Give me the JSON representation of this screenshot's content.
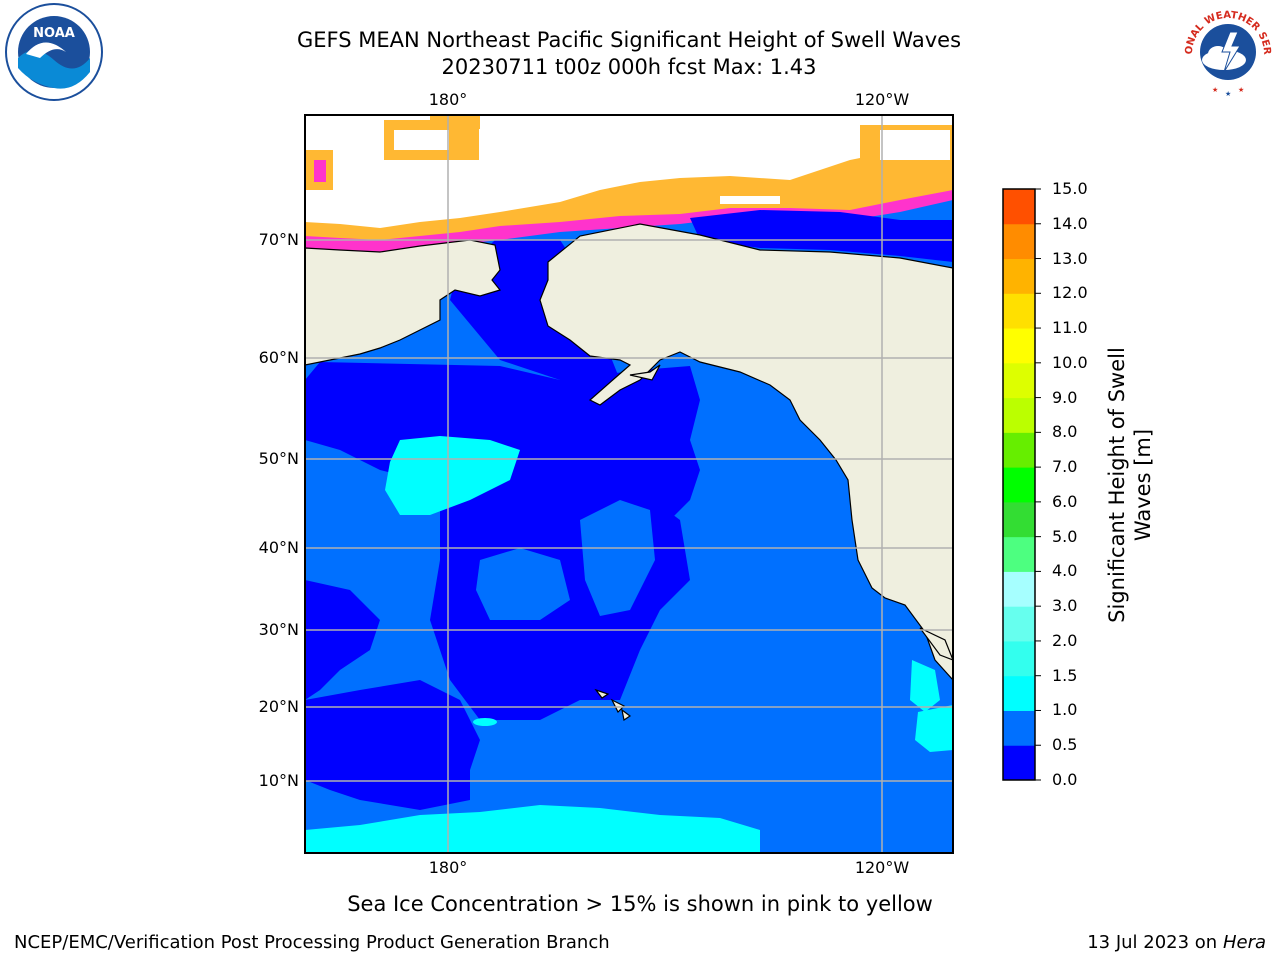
{
  "header": {
    "title_line1": "GEFS MEAN Northeast Pacific Significant Height of Swell Waves",
    "title_line2": "20230711 t00z 000h fcst   Max: 1.43"
  },
  "logos": {
    "left": {
      "name": "noaa-logo",
      "text": "NOAA"
    },
    "right": {
      "name": "nws-logo",
      "text": "NATIONAL WEATHER SERVICE"
    }
  },
  "map": {
    "lon_labels": [
      "180°",
      "120°W"
    ],
    "lat_labels": [
      "70°N",
      "60°N",
      "50°N",
      "40°N",
      "30°N",
      "20°N",
      "10°N"
    ],
    "colors": {
      "land": "#efefdf",
      "ice_edge": "#ffb833",
      "ice_pink": "#ff33cc",
      "gridline": "#b0b0b0"
    }
  },
  "colorbar": {
    "label": "Significant Height of Swell Waves [m]",
    "label_line1": "Significant Height of Swell",
    "label_line2": "Waves [m]",
    "ticks": [
      "15.0",
      "14.0",
      "13.0",
      "12.0",
      "11.0",
      "10.0",
      "9.0",
      "8.0",
      "7.0",
      "6.0",
      "5.0",
      "4.0",
      "3.0",
      "2.0",
      "1.5",
      "1.0",
      "0.5",
      "0.0"
    ],
    "colors": [
      "#0000ff",
      "#0070ff",
      "#00ffff",
      "#33ffee",
      "#66ffee",
      "#a6ffff",
      "#4dff80",
      "#33dd33",
      "#00ff00",
      "#66ee00",
      "#bbff00",
      "#ddff00",
      "#ffff00",
      "#ffe000",
      "#ffb300",
      "#ff8c00",
      "#ff5000",
      "#ff2000",
      "#ff0000"
    ]
  },
  "caption": "Sea Ice Concentration > 15% is shown in pink to yellow",
  "footer": {
    "left": "NCEP/EMC/Verification Post Processing Product Generation Branch",
    "right_date": "13 Jul 2023 on ",
    "right_host": "Hera"
  }
}
